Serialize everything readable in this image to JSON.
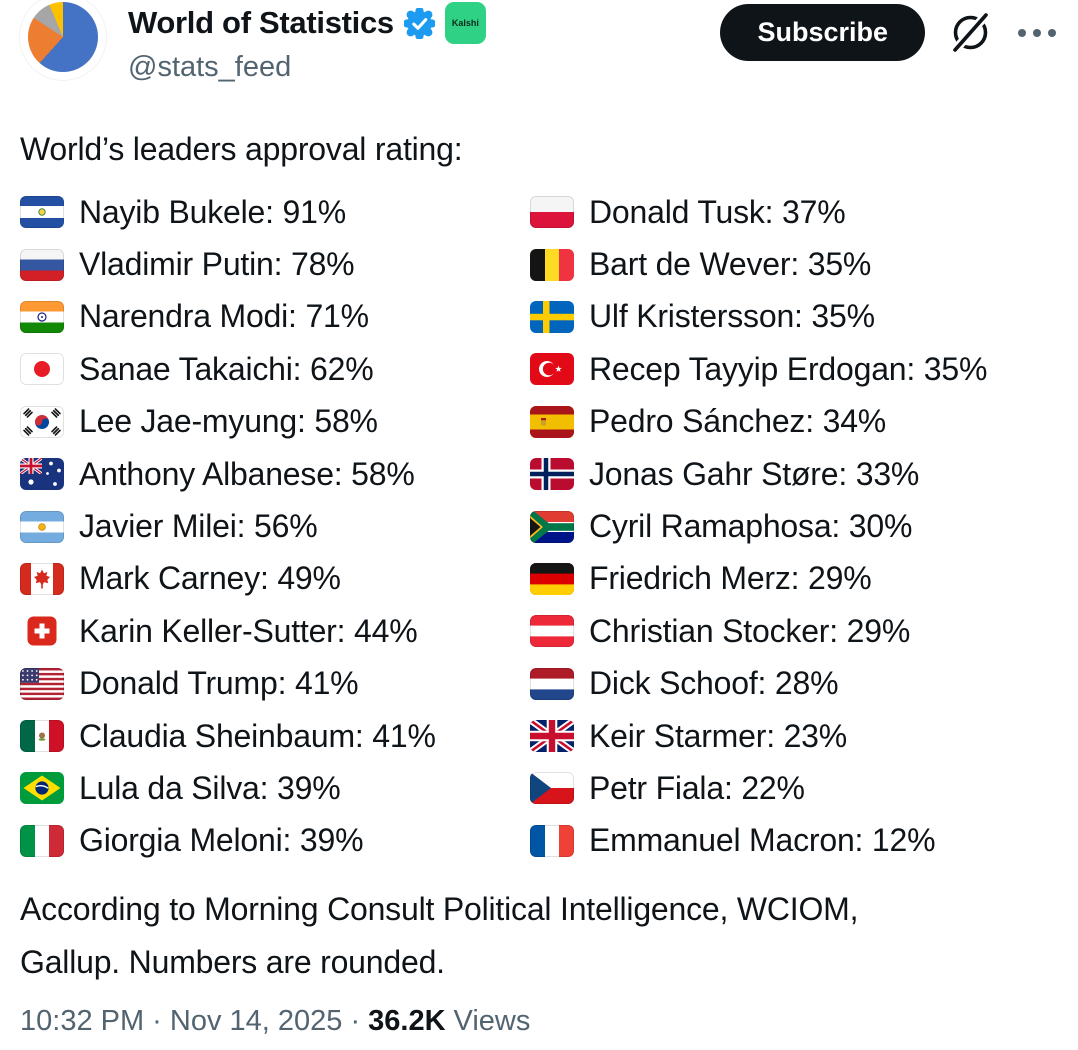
{
  "theme": {
    "text": "#0f1419",
    "muted": "#536471",
    "verified_blue": "#1d9bf0",
    "kalshi_green": "#2fd184",
    "subscribe_bg": "#0f1419",
    "background": "#ffffff",
    "avatar_pie_colors": [
      "#4472c4",
      "#ed7d31",
      "#a6a6a6",
      "#ffc000"
    ]
  },
  "header": {
    "display_name": "World of Statistics",
    "handle": "@stats_feed",
    "verified_badge_icon": "verified-checkmark",
    "affiliate_badge_label": "Kalshi",
    "subscribe_label": "Subscribe",
    "grok_icon": "grok-logo",
    "more_icon": "more-options-ellipsis",
    "avatar_icon": "pie-chart-avatar"
  },
  "post": {
    "body_text": "World’s leaders approval rating:",
    "columns": [
      [
        {
          "flag": "el-salvador",
          "leader": "Nayib Bukele",
          "approval": "91%"
        },
        {
          "flag": "russia",
          "leader": "Vladimir Putin",
          "approval": "78%"
        },
        {
          "flag": "india",
          "leader": "Narendra Modi",
          "approval": "71%"
        },
        {
          "flag": "japan",
          "leader": "Sanae Takaichi",
          "approval": "62%"
        },
        {
          "flag": "south-korea",
          "leader": "Lee Jae-myung",
          "approval": "58%"
        },
        {
          "flag": "australia",
          "leader": "Anthony Albanese",
          "approval": "58%"
        },
        {
          "flag": "argentina",
          "leader": "Javier Milei",
          "approval": "56%"
        },
        {
          "flag": "canada",
          "leader": "Mark Carney",
          "approval": "49%"
        },
        {
          "flag": "switzerland",
          "leader": "Karin Keller-Sutter",
          "approval": "44%"
        },
        {
          "flag": "usa",
          "leader": "Donald Trump",
          "approval": "41%"
        },
        {
          "flag": "mexico",
          "leader": "Claudia Sheinbaum",
          "approval": "41%"
        },
        {
          "flag": "brazil",
          "leader": "Lula da Silva",
          "approval": "39%"
        },
        {
          "flag": "italy",
          "leader": "Giorgia Meloni",
          "approval": "39%"
        }
      ],
      [
        {
          "flag": "poland",
          "leader": "Donald Tusk",
          "approval": "37%"
        },
        {
          "flag": "belgium",
          "leader": "Bart de Wever",
          "approval": "35%"
        },
        {
          "flag": "sweden",
          "leader": "Ulf Kristersson",
          "approval": "35%"
        },
        {
          "flag": "turkey",
          "leader": "Recep Tayyip Erdogan",
          "approval": "35%"
        },
        {
          "flag": "spain",
          "leader": "Pedro Sánchez",
          "approval": "34%"
        },
        {
          "flag": "norway",
          "leader": "Jonas Gahr Støre",
          "approval": "33%"
        },
        {
          "flag": "south-africa",
          "leader": "Cyril Ramaphosa",
          "approval": "30%"
        },
        {
          "flag": "germany",
          "leader": "Friedrich Merz",
          "approval": "29%"
        },
        {
          "flag": "austria",
          "leader": "Christian Stocker",
          "approval": "29%"
        },
        {
          "flag": "netherlands",
          "leader": "Dick Schoof",
          "approval": "28%"
        },
        {
          "flag": "uk",
          "leader": "Keir Starmer",
          "approval": "23%"
        },
        {
          "flag": "czech-republic",
          "leader": "Petr Fiala",
          "approval": "22%"
        },
        {
          "flag": "france",
          "leader": "Emmanuel Macron",
          "approval": "12%"
        }
      ]
    ],
    "source_note": "According to Morning Consult Political Intelligence, WCIOM, Gallup. Numbers are rounded."
  },
  "footer": {
    "timestamp": "10:32 PM · Nov 14, 2025 ·",
    "views_count": "36.2K",
    "views_label": "Views"
  }
}
